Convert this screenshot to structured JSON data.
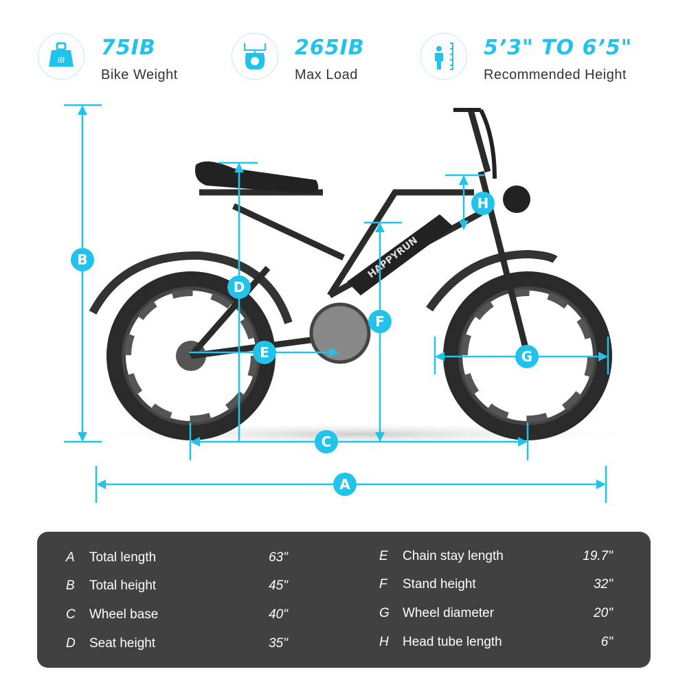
{
  "stats": [
    {
      "icon": "weight-icon",
      "value": "75IB",
      "label": "Bike Weight",
      "icon_text": "IB"
    },
    {
      "icon": "scale-icon",
      "value": "265IB",
      "label": "Max Load"
    },
    {
      "icon": "height-icon",
      "value": "5’3\" TO 6’5\"",
      "label": "Recommended Height"
    }
  ],
  "brand": "HAPPYRUN",
  "markers": {
    "A": "A",
    "B": "B",
    "C": "C",
    "D": "D",
    "E": "E",
    "F": "F",
    "G": "G",
    "H": "H"
  },
  "specs": [
    {
      "key": "A",
      "name": "Total length",
      "value": "63\""
    },
    {
      "key": "B",
      "name": "Total height",
      "value": "45\""
    },
    {
      "key": "C",
      "name": "Wheel base",
      "value": "40\""
    },
    {
      "key": "D",
      "name": "Seat height",
      "value": "35\""
    },
    {
      "key": "E",
      "name": "Chain stay length",
      "value": "19.7\""
    },
    {
      "key": "F",
      "name": "Stand height",
      "value": "32\""
    },
    {
      "key": "G",
      "name": "Wheel diameter",
      "value": "20\""
    },
    {
      "key": "H",
      "name": "Head tube length",
      "value": "6\""
    }
  ],
  "colors": {
    "accent": "#1fc3ec",
    "panel": "#414141",
    "frame": "#2b2b2b"
  }
}
